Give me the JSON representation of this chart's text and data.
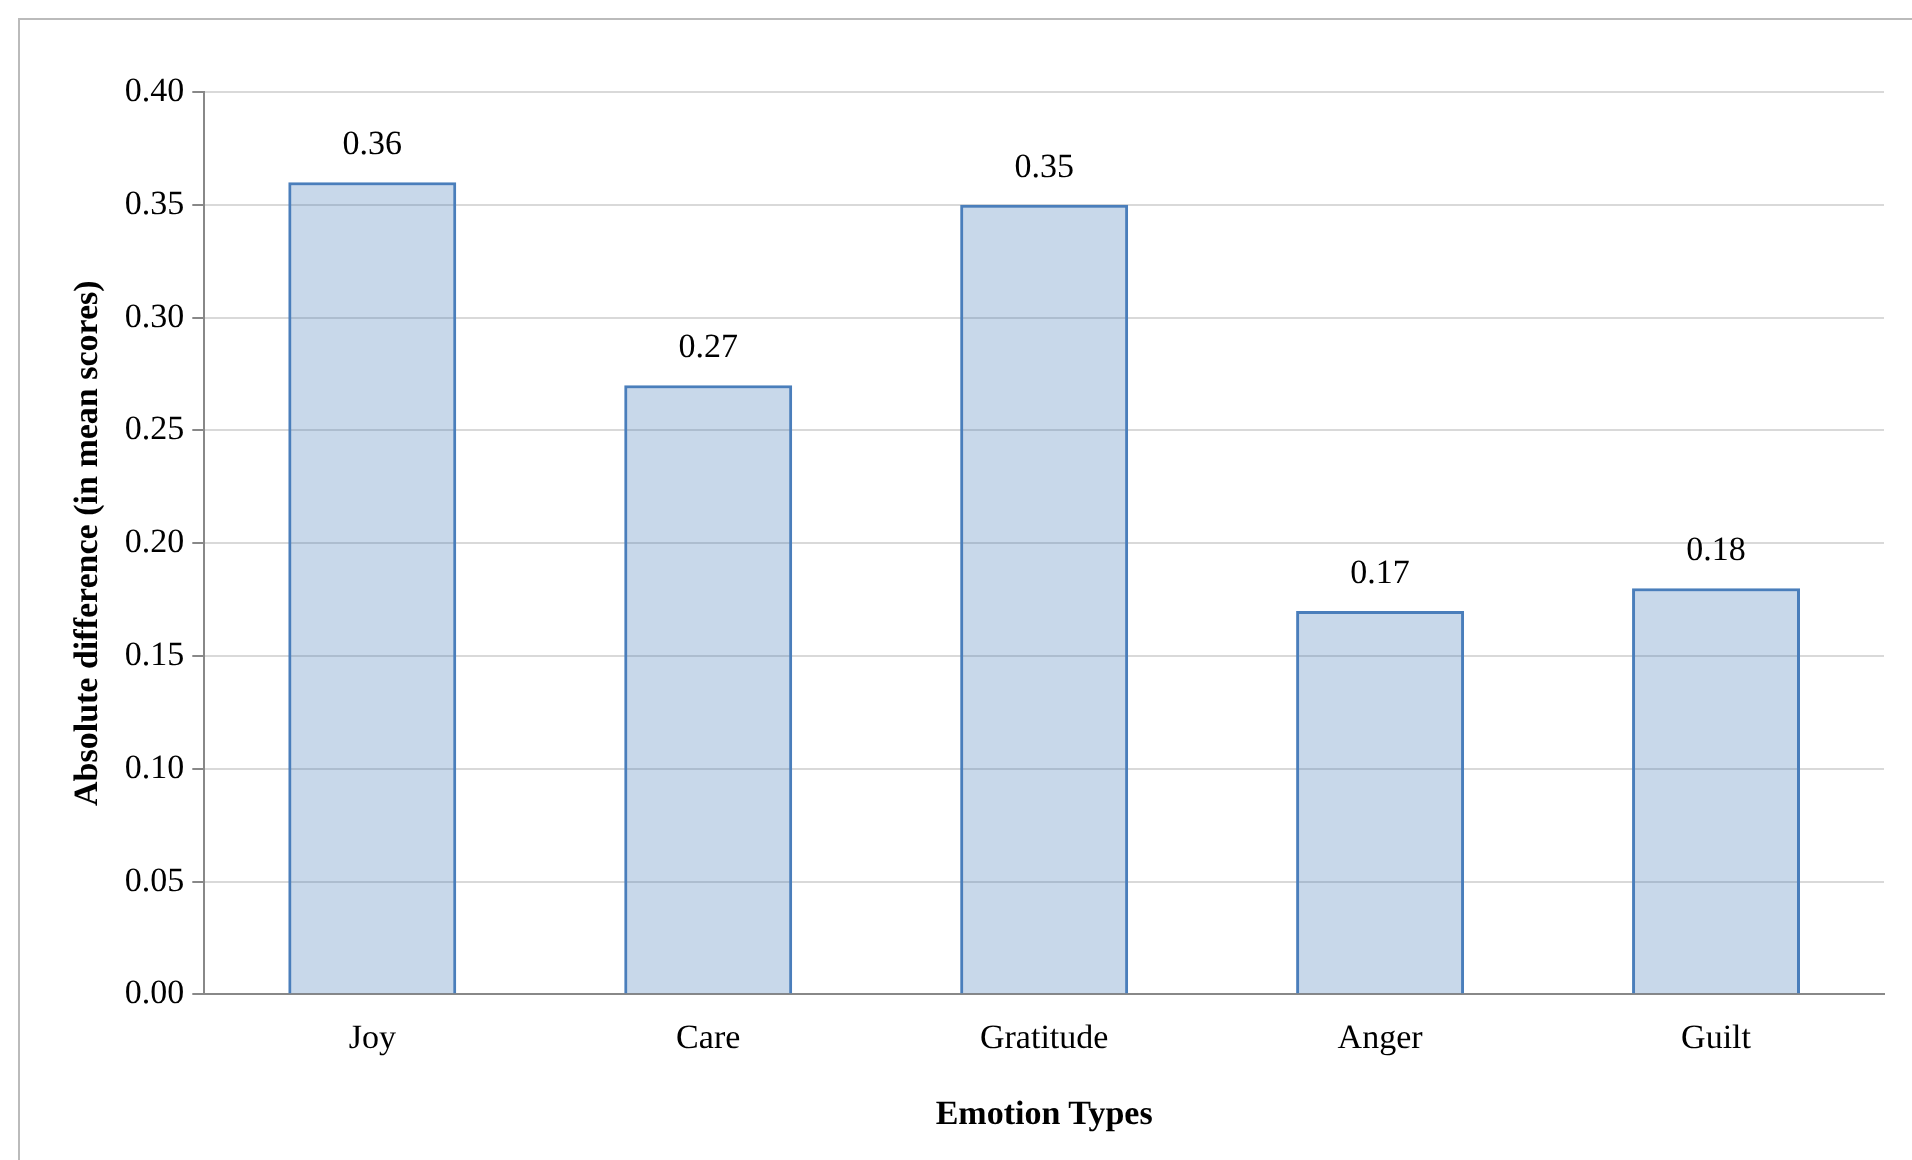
{
  "chart_data": {
    "type": "bar",
    "xlabel": "Emotion Types",
    "ylabel": "Absolute difference (in mean scores)",
    "categories": [
      "Joy",
      "Care",
      "Gratitude",
      "Anger",
      "Guilt"
    ],
    "values": [
      0.36,
      0.27,
      0.35,
      0.17,
      0.18
    ],
    "color": "#4a7ebb",
    "ylim": [
      0,
      0.4
    ],
    "yticks": [
      {
        "value": 0,
        "label": "0.00"
      },
      {
        "value": 0.05,
        "label": "0.05"
      },
      {
        "value": 0.1,
        "label": "0.10"
      },
      {
        "value": 0.15,
        "label": "0.15"
      },
      {
        "value": 0.2,
        "label": "0.20"
      },
      {
        "value": 0.25,
        "label": "0.25"
      },
      {
        "value": 0.3,
        "label": "0.30"
      },
      {
        "value": 0.35,
        "label": "0.35"
      },
      {
        "value": 0.4,
        "label": "0.40"
      }
    ],
    "grid": "y",
    "data_labels": true,
    "legend": false
  }
}
